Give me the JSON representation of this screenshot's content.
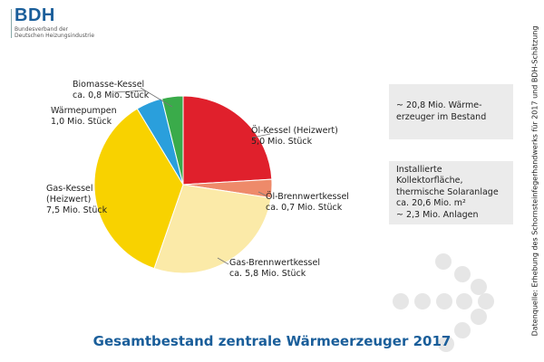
{
  "logo": {
    "name": "BDH",
    "subtitle_line1": "Bundesverband der",
    "subtitle_line2": "Deutschen Heizungsindustrie"
  },
  "title": "Gesamtbestand zentrale Wärmeerzeuger 2017",
  "source": "Datenquelle: Erhebung des Schornsteinfegerhandwerks für 2017 und BDH-Schätzung",
  "info_box1": {
    "line1": "~ 20,8 Mio. Wärme-",
    "line2": "erzeuger im Bestand"
  },
  "info_box2": {
    "line1": "Installierte Kollektorfläche,",
    "line2": "thermische Solaranlage",
    "line3": "ca. 20,6 Mio. m²",
    "line4": "~ 2,3 Mio. Anlagen"
  },
  "chart_data": {
    "type": "pie",
    "title": "Gesamtbestand zentrale Wärmeerzeuger 2017",
    "unit": "Mio. Stück",
    "slices": [
      {
        "name": "Öl-Kessel (Heizwert)",
        "value": 5.0,
        "label": "5,0 Mio. Stück",
        "color": "#e0202c"
      },
      {
        "name": "Öl-Brennwertkessel",
        "value": 0.7,
        "label": "ca. 0,7 Mio. Stück",
        "color": "#ee8a6a"
      },
      {
        "name": "Gas-Brennwertkessel",
        "value": 5.8,
        "label": "ca. 5,8 Mio. Stück",
        "color": "#fbeaa8"
      },
      {
        "name": "Gas-Kessel (Heizwert)",
        "value": 7.5,
        "label": "7,5 Mio. Stück",
        "color": "#f8d200"
      },
      {
        "name": "Wärmepumpen",
        "value": 1.0,
        "label": "1,0 Mio. Stück",
        "color": "#2a9fdc"
      },
      {
        "name": "Biomasse-Kessel",
        "value": 0.8,
        "label": "ca. 0,8 Mio. Stück",
        "color": "#3aab4a"
      }
    ]
  }
}
